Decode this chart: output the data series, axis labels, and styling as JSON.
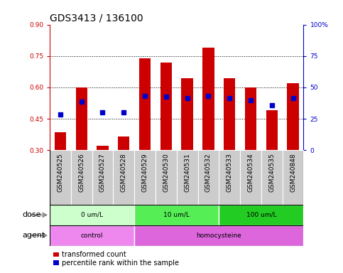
{
  "title": "GDS3413 / 136100",
  "samples": [
    "GSM240525",
    "GSM240526",
    "GSM240527",
    "GSM240528",
    "GSM240529",
    "GSM240530",
    "GSM240531",
    "GSM240532",
    "GSM240533",
    "GSM240534",
    "GSM240535",
    "GSM240848"
  ],
  "transformed_count": [
    0.385,
    0.6,
    0.32,
    0.365,
    0.74,
    0.72,
    0.645,
    0.79,
    0.645,
    0.6,
    0.49,
    0.62
  ],
  "percentile_rank": [
    0.47,
    0.53,
    0.48,
    0.48,
    0.56,
    0.555,
    0.55,
    0.56,
    0.55,
    0.54,
    0.515,
    0.55
  ],
  "ylim_left": [
    0.3,
    0.9
  ],
  "ylim_right": [
    0,
    100
  ],
  "yticks_left": [
    0.3,
    0.45,
    0.6,
    0.75,
    0.9
  ],
  "yticks_right": [
    0,
    25,
    50,
    75,
    100
  ],
  "bar_color": "#cc0000",
  "dot_color": "#0000cc",
  "xtick_bg_color": "#cccccc",
  "dose_groups": [
    {
      "label": "0 um/L",
      "start": 0,
      "end": 3,
      "color": "#ccffcc"
    },
    {
      "label": "10 um/L",
      "start": 4,
      "end": 7,
      "color": "#55ee55"
    },
    {
      "label": "100 um/L",
      "start": 8,
      "end": 11,
      "color": "#22cc22"
    }
  ],
  "agent_groups": [
    {
      "label": "control",
      "start": 0,
      "end": 3,
      "color": "#ee88ee"
    },
    {
      "label": "homocysteine",
      "start": 4,
      "end": 11,
      "color": "#dd66dd"
    }
  ],
  "dose_label": "dose",
  "agent_label": "agent",
  "legend_bar_label": "transformed count",
  "legend_dot_label": "percentile rank within the sample",
  "bar_width": 0.55,
  "tick_label_fontsize": 6.5,
  "row_label_fontsize": 8,
  "title_fontsize": 10,
  "legend_fontsize": 7
}
